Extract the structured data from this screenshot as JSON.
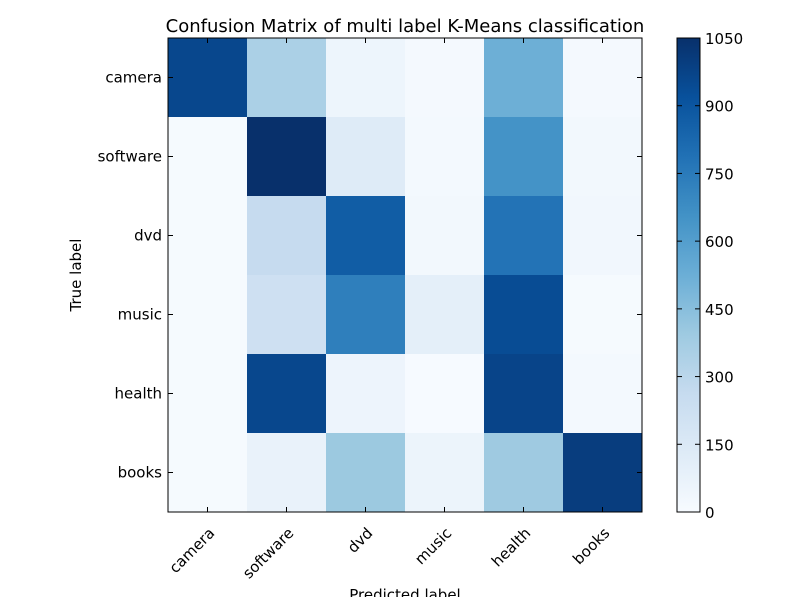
{
  "chart_data": {
    "type": "heatmap",
    "title": "Confusion Matrix of multi label K-Means classification",
    "xlabel": "Predicted label",
    "ylabel": "True label",
    "x_categories": [
      "camera",
      "software",
      "dvd",
      "music",
      "health",
      "books"
    ],
    "y_categories": [
      "camera",
      "software",
      "dvd",
      "music",
      "health",
      "books"
    ],
    "values": [
      [
        960,
        350,
        50,
        15,
        520,
        15
      ],
      [
        10,
        1050,
        130,
        20,
        650,
        25
      ],
      [
        10,
        260,
        870,
        25,
        780,
        30
      ],
      [
        10,
        220,
        730,
        100,
        940,
        10
      ],
      [
        10,
        960,
        55,
        5,
        970,
        20
      ],
      [
        10,
        75,
        400,
        60,
        390,
        1000
      ]
    ],
    "colorbar": {
      "min": 0,
      "max": 1050,
      "ticks": [
        0,
        150,
        300,
        450,
        600,
        750,
        900,
        1050
      ],
      "colormap": "Blues"
    }
  }
}
